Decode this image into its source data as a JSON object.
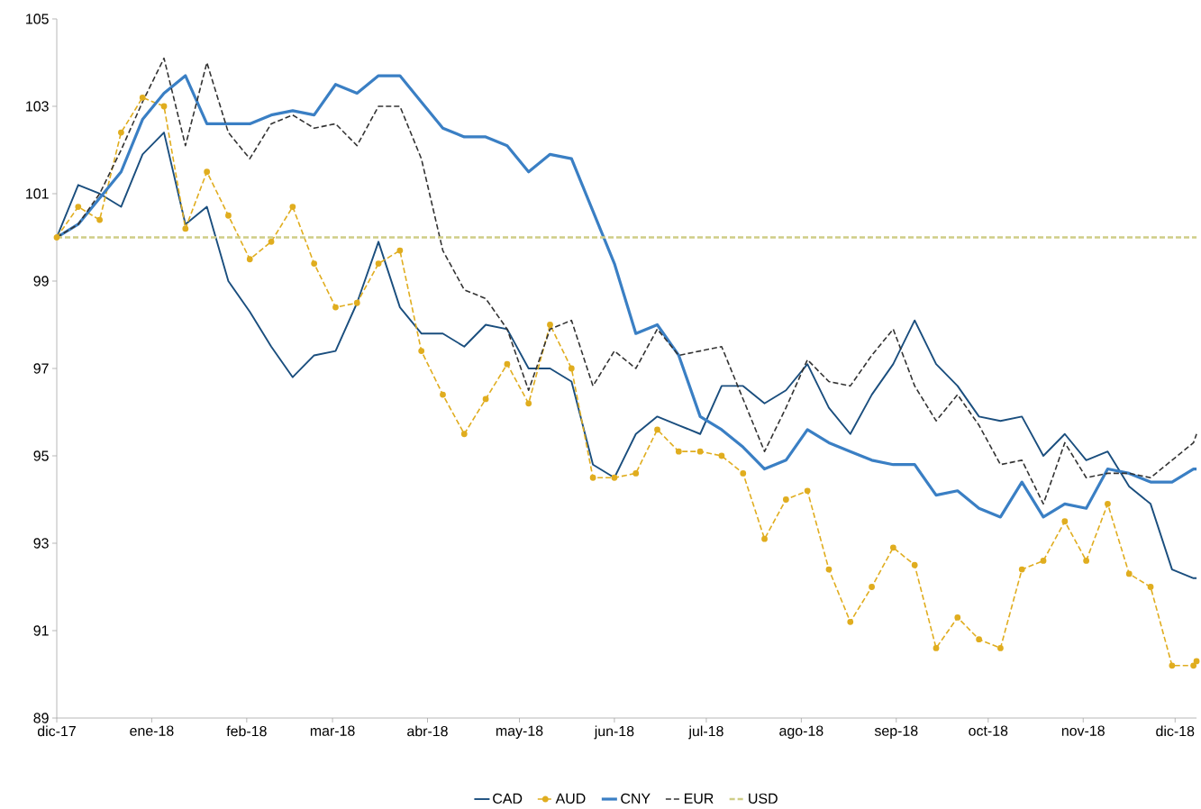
{
  "chart_data": {
    "type": "line",
    "x": [
      "2017-12-01",
      "2017-12-08",
      "2017-12-15",
      "2017-12-22",
      "2017-12-29",
      "2018-01-05",
      "2018-01-12",
      "2018-01-19",
      "2018-01-26",
      "2018-02-02",
      "2018-02-09",
      "2018-02-16",
      "2018-02-23",
      "2018-03-02",
      "2018-03-09",
      "2018-03-16",
      "2018-03-23",
      "2018-03-30",
      "2018-04-06",
      "2018-04-13",
      "2018-04-20",
      "2018-04-27",
      "2018-05-04",
      "2018-05-11",
      "2018-05-18",
      "2018-05-25",
      "2018-06-01",
      "2018-06-08",
      "2018-06-15",
      "2018-06-22",
      "2018-06-29",
      "2018-07-06",
      "2018-07-13",
      "2018-07-20",
      "2018-07-27",
      "2018-08-03",
      "2018-08-10",
      "2018-08-17",
      "2018-08-24",
      "2018-08-31",
      "2018-09-07",
      "2018-09-14",
      "2018-09-21",
      "2018-09-28",
      "2018-10-05",
      "2018-10-12",
      "2018-10-19",
      "2018-10-26",
      "2018-11-02",
      "2018-11-09",
      "2018-11-16",
      "2018-11-23",
      "2018-11-30",
      "2018-12-07",
      "2018-12-08"
    ],
    "series": [
      {
        "name": "CAD",
        "color": "#1a4e7e",
        "line_style": "solid",
        "marker": "none",
        "values": [
          100.0,
          101.2,
          101.0,
          100.7,
          101.9,
          102.4,
          100.3,
          100.7,
          99.0,
          98.3,
          97.5,
          96.8,
          97.3,
          97.4,
          98.5,
          99.9,
          98.4,
          97.8,
          97.8,
          97.5,
          98.0,
          97.9,
          97.0,
          97.0,
          96.7,
          94.8,
          94.5,
          95.5,
          95.9,
          95.7,
          95.5,
          96.6,
          96.6,
          96.2,
          96.5,
          97.1,
          96.1,
          95.5,
          96.4,
          97.1,
          98.1,
          97.1,
          96.6,
          95.9,
          95.8,
          95.9,
          95.0,
          95.5,
          94.9,
          95.1,
          94.3,
          93.9,
          92.4,
          92.2,
          92.2
        ]
      },
      {
        "name": "AUD",
        "color": "#e0ad1f",
        "line_style": "dashed",
        "marker": "circle",
        "values": [
          100.0,
          100.7,
          100.4,
          102.4,
          103.2,
          103.0,
          100.2,
          101.5,
          100.5,
          99.5,
          99.9,
          100.7,
          99.4,
          98.4,
          98.5,
          99.4,
          99.7,
          97.4,
          96.4,
          95.5,
          96.3,
          97.1,
          96.2,
          98.0,
          97.0,
          94.5,
          94.5,
          94.6,
          95.6,
          95.1,
          95.1,
          95.0,
          94.6,
          93.1,
          94.0,
          94.2,
          92.4,
          91.2,
          92.0,
          92.9,
          92.5,
          90.6,
          91.3,
          90.8,
          90.6,
          92.4,
          92.6,
          93.5,
          92.6,
          93.9,
          92.3,
          92.0,
          90.2,
          90.2,
          90.3
        ]
      },
      {
        "name": "CNY",
        "color": "#3a7fc4",
        "line_style": "solid",
        "marker": "none",
        "values": [
          100.0,
          100.3,
          100.9,
          101.5,
          102.7,
          103.3,
          103.7,
          102.6,
          102.6,
          102.6,
          102.8,
          102.9,
          102.8,
          103.5,
          103.3,
          103.7,
          103.7,
          103.1,
          102.5,
          102.3,
          102.3,
          102.1,
          101.5,
          101.9,
          101.8,
          100.6,
          99.4,
          97.8,
          98.0,
          97.3,
          95.9,
          95.6,
          95.2,
          94.7,
          94.9,
          95.6,
          95.3,
          95.1,
          94.9,
          94.8,
          94.8,
          94.1,
          94.2,
          93.8,
          93.6,
          94.4,
          93.6,
          93.9,
          93.8,
          94.7,
          94.6,
          94.4,
          94.4,
          94.7,
          94.7
        ]
      },
      {
        "name": "EUR",
        "color": "#333333",
        "line_style": "dashed",
        "marker": "none",
        "values": [
          100.0,
          100.3,
          101.0,
          102.0,
          103.1,
          104.1,
          102.1,
          104.0,
          102.4,
          101.8,
          102.6,
          102.8,
          102.5,
          102.6,
          102.1,
          103.0,
          103.0,
          101.8,
          99.7,
          98.8,
          98.6,
          97.9,
          96.5,
          97.9,
          98.1,
          96.6,
          97.4,
          97.0,
          97.9,
          97.3,
          97.4,
          97.5,
          96.3,
          95.1,
          96.1,
          97.2,
          96.7,
          96.6,
          97.3,
          97.9,
          96.6,
          95.8,
          96.4,
          95.7,
          94.8,
          94.9,
          93.9,
          95.3,
          94.5,
          94.6,
          94.6,
          94.5,
          94.9,
          95.3,
          95.5
        ]
      },
      {
        "name": "USD",
        "color": "#cfcd87",
        "line_style": "dashed",
        "marker": "none",
        "x": [
          "2017-12-01",
          "2018-12-08"
        ],
        "values": [
          100,
          100
        ]
      }
    ],
    "xlim": [
      "2017-12-01",
      "2018-12-08"
    ],
    "xticks": [
      {
        "value": "2017-12-01",
        "label": "dic-17"
      },
      {
        "value": "2018-01-01",
        "label": "ene-18"
      },
      {
        "value": "2018-02-01",
        "label": "feb-18"
      },
      {
        "value": "2018-03-01",
        "label": "mar-18"
      },
      {
        "value": "2018-04-01",
        "label": "abr-18"
      },
      {
        "value": "2018-05-01",
        "label": "may-18"
      },
      {
        "value": "2018-06-01",
        "label": "jun-18"
      },
      {
        "value": "2018-07-01",
        "label": "jul-18"
      },
      {
        "value": "2018-08-01",
        "label": "ago-18"
      },
      {
        "value": "2018-09-01",
        "label": "sep-18"
      },
      {
        "value": "2018-10-01",
        "label": "oct-18"
      },
      {
        "value": "2018-11-01",
        "label": "nov-18"
      },
      {
        "value": "2018-12-01",
        "label": "dic-18"
      }
    ],
    "ylim": [
      89,
      105
    ],
    "yticks": [
      89,
      91,
      93,
      95,
      97,
      99,
      101,
      103,
      105
    ],
    "grid": false,
    "legend": "bottom"
  }
}
